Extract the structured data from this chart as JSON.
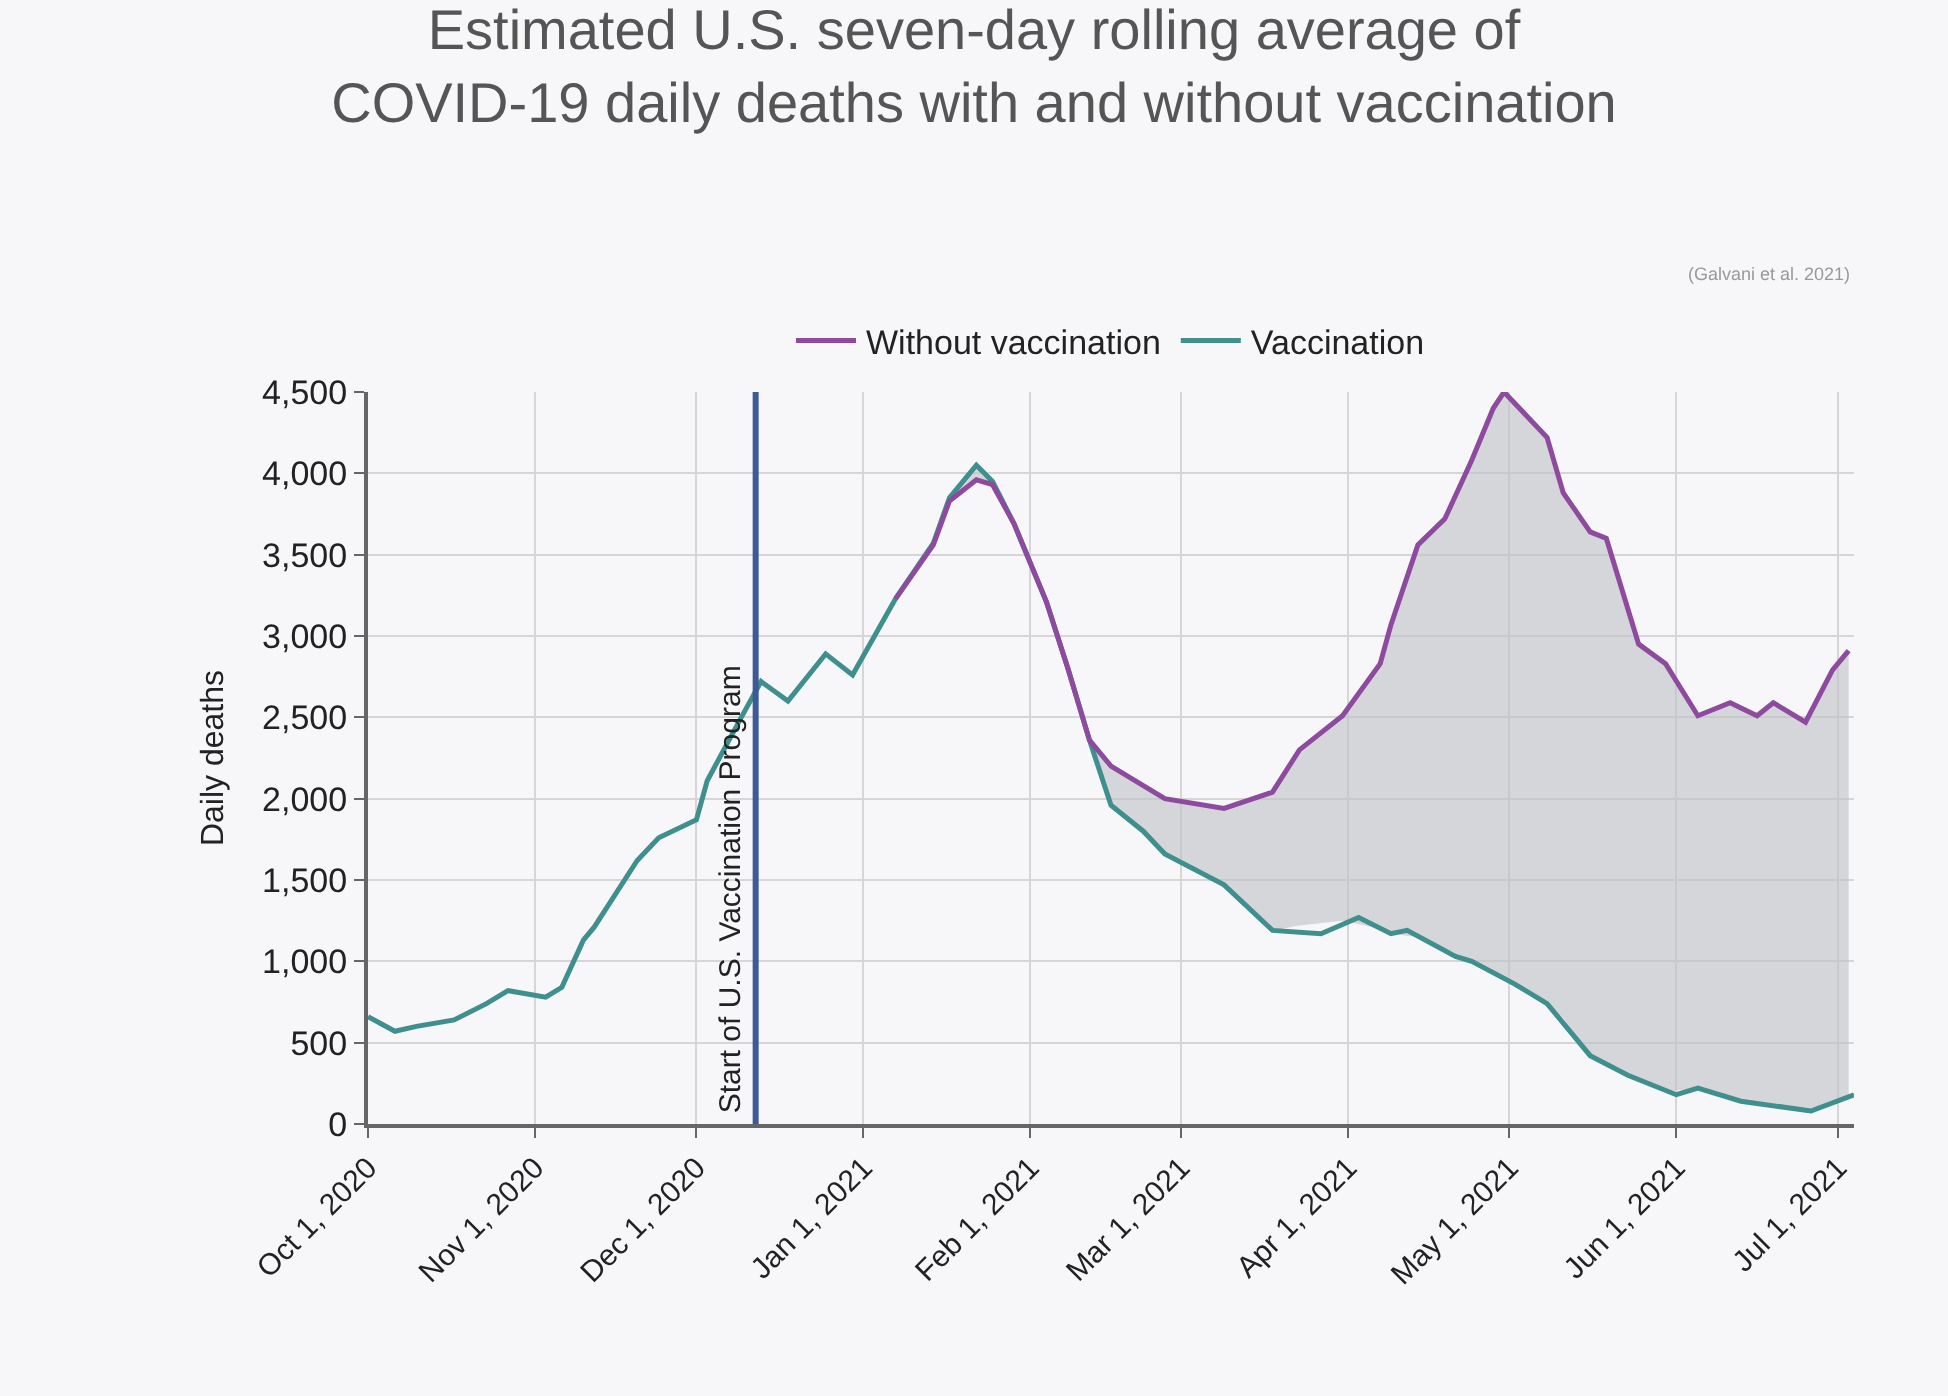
{
  "chart_data": {
    "type": "line",
    "title": "Estimated U.S. seven-day rolling average of\nCOVID-19 daily deaths with and without vaccination",
    "ylabel": "Daily deaths",
    "annotations": [
      "(Galvani et al. 2021)"
    ],
    "xlim": [
      "2020-10-01",
      "2021-07-04"
    ],
    "xticks": [
      {
        "value": "2020-10-01",
        "label": "Oct 1, 2020"
      },
      {
        "value": "2020-11-01",
        "label": "Nov 1, 2020"
      },
      {
        "value": "2020-12-01",
        "label": "Dec 1, 2020"
      },
      {
        "value": "2021-01-01",
        "label": "Jan 1, 2021"
      },
      {
        "value": "2021-02-01",
        "label": "Feb 1, 2021"
      },
      {
        "value": "2021-03-01",
        "label": "Mar 1, 2021"
      },
      {
        "value": "2021-04-01",
        "label": "Apr 1, 2021"
      },
      {
        "value": "2021-05-01",
        "label": "May 1, 2021"
      },
      {
        "value": "2021-06-01",
        "label": "Jun 1, 2021"
      },
      {
        "value": "2021-07-01",
        "label": "Jul 1, 2021"
      }
    ],
    "ylim": [
      0,
      4500
    ],
    "yticks": [
      0,
      500,
      {
        "value": 1000,
        "label": "1,000"
      },
      {
        "value": 1500,
        "label": "1,500"
      },
      {
        "value": 2000,
        "label": "2,000"
      },
      {
        "value": 2500,
        "label": "2,500"
      },
      {
        "value": 3000,
        "label": "3,000"
      },
      {
        "value": 3500,
        "label": "3,500"
      },
      {
        "value": 4000,
        "label": "4,000"
      },
      {
        "value": 4500,
        "label": "4,500"
      }
    ],
    "grid": true,
    "legend": "top",
    "marker": "none",
    "line_style": "solid",
    "ref_lines": [
      {
        "axis": "x",
        "value": "2020-12-12",
        "label": "Start of U.S. Vaccination Program",
        "color": "#3d5a96"
      }
    ],
    "series": [
      {
        "name": "Vaccination",
        "color": "#3f8f8e",
        "x": [
          "2020-10-01",
          "2020-10-06",
          "2020-10-10",
          "2020-10-17",
          "2020-10-23",
          "2020-10-27",
          "2020-11-03",
          "2020-11-06",
          "2020-11-10",
          "2020-11-12",
          "2020-11-20",
          "2020-11-24",
          "2020-12-01",
          "2020-12-03",
          "2020-12-09",
          "2020-12-13",
          "2020-12-18",
          "2020-12-25",
          "2020-12-30",
          "2021-01-07",
          "2021-01-14",
          "2021-01-17",
          "2021-01-22",
          "2021-01-25",
          "2021-01-29",
          "2021-02-04",
          "2021-02-08",
          "2021-02-12",
          "2021-02-16",
          "2021-02-22",
          "2021-02-26",
          "2021-03-09",
          "2021-03-18",
          "2021-03-27",
          "2021-04-03",
          "2021-04-09",
          "2021-04-12",
          "2021-04-21",
          "2021-04-24",
          "2021-05-02",
          "2021-05-08",
          "2021-05-16",
          "2021-05-23",
          "2021-06-01",
          "2021-06-05",
          "2021-06-13",
          "2021-06-26",
          "2021-07-04"
        ],
        "values": [
          660,
          570,
          600,
          640,
          740,
          820,
          780,
          840,
          1130,
          1210,
          1620,
          1760,
          1870,
          2110,
          2480,
          2720,
          2600,
          2890,
          2760,
          3230,
          3570,
          3850,
          4050,
          3950,
          3690,
          3210,
          2800,
          2360,
          1960,
          1800,
          1660,
          1470,
          1190,
          1170,
          1270,
          1170,
          1190,
          1030,
          1000,
          860,
          740,
          420,
          300,
          180,
          220,
          140,
          80,
          180
        ]
      },
      {
        "name": "Without vaccination",
        "color": "#8e4a9e",
        "x": [
          "2021-01-07",
          "2021-01-14",
          "2021-01-17",
          "2021-01-22",
          "2021-01-25",
          "2021-01-29",
          "2021-02-04",
          "2021-02-08",
          "2021-02-12",
          "2021-02-16",
          "2021-02-22",
          "2021-02-26",
          "2021-03-09",
          "2021-03-18",
          "2021-03-23",
          "2021-03-31",
          "2021-04-07",
          "2021-04-09",
          "2021-04-14",
          "2021-04-19",
          "2021-04-24",
          "2021-04-28",
          "2021-04-30",
          "2021-05-04",
          "2021-05-08",
          "2021-05-11",
          "2021-05-16",
          "2021-05-19",
          "2021-05-25",
          "2021-05-30",
          "2021-06-05",
          "2021-06-11",
          "2021-06-16",
          "2021-06-19",
          "2021-06-25",
          "2021-06-30",
          "2021-07-03"
        ],
        "values": [
          3230,
          3560,
          3830,
          3960,
          3930,
          3690,
          3210,
          2800,
          2360,
          2200,
          2080,
          2000,
          1940,
          2040,
          2300,
          2510,
          2830,
          3070,
          3560,
          3720,
          4080,
          4400,
          4500,
          4360,
          4220,
          3880,
          3640,
          3600,
          2950,
          2830,
          2510,
          2590,
          2510,
          2590,
          2470,
          2790,
          2910
        ],
        "lower": [
          3230,
          3570,
          3850,
          4050,
          3950,
          3690,
          3210,
          2800,
          2360,
          1960,
          1800,
          1660,
          1470,
          1190,
          1220,
          1250,
          1200,
          1170,
          1150,
          1080,
          1000,
          930,
          900,
          820,
          740,
          650,
          420,
          360,
          280,
          200,
          220,
          160,
          130,
          110,
          85,
          120,
          170
        ],
        "upper": [
          3230,
          3560,
          3830,
          3960,
          3930,
          3690,
          3210,
          2800,
          2360,
          2200,
          2080,
          2000,
          1940,
          2040,
          2300,
          2510,
          2830,
          3070,
          3560,
          3720,
          4080,
          4400,
          4500,
          4360,
          4220,
          3880,
          3640,
          3600,
          2950,
          2830,
          2510,
          2590,
          2510,
          2590,
          2470,
          2790,
          2910
        ]
      }
    ]
  }
}
